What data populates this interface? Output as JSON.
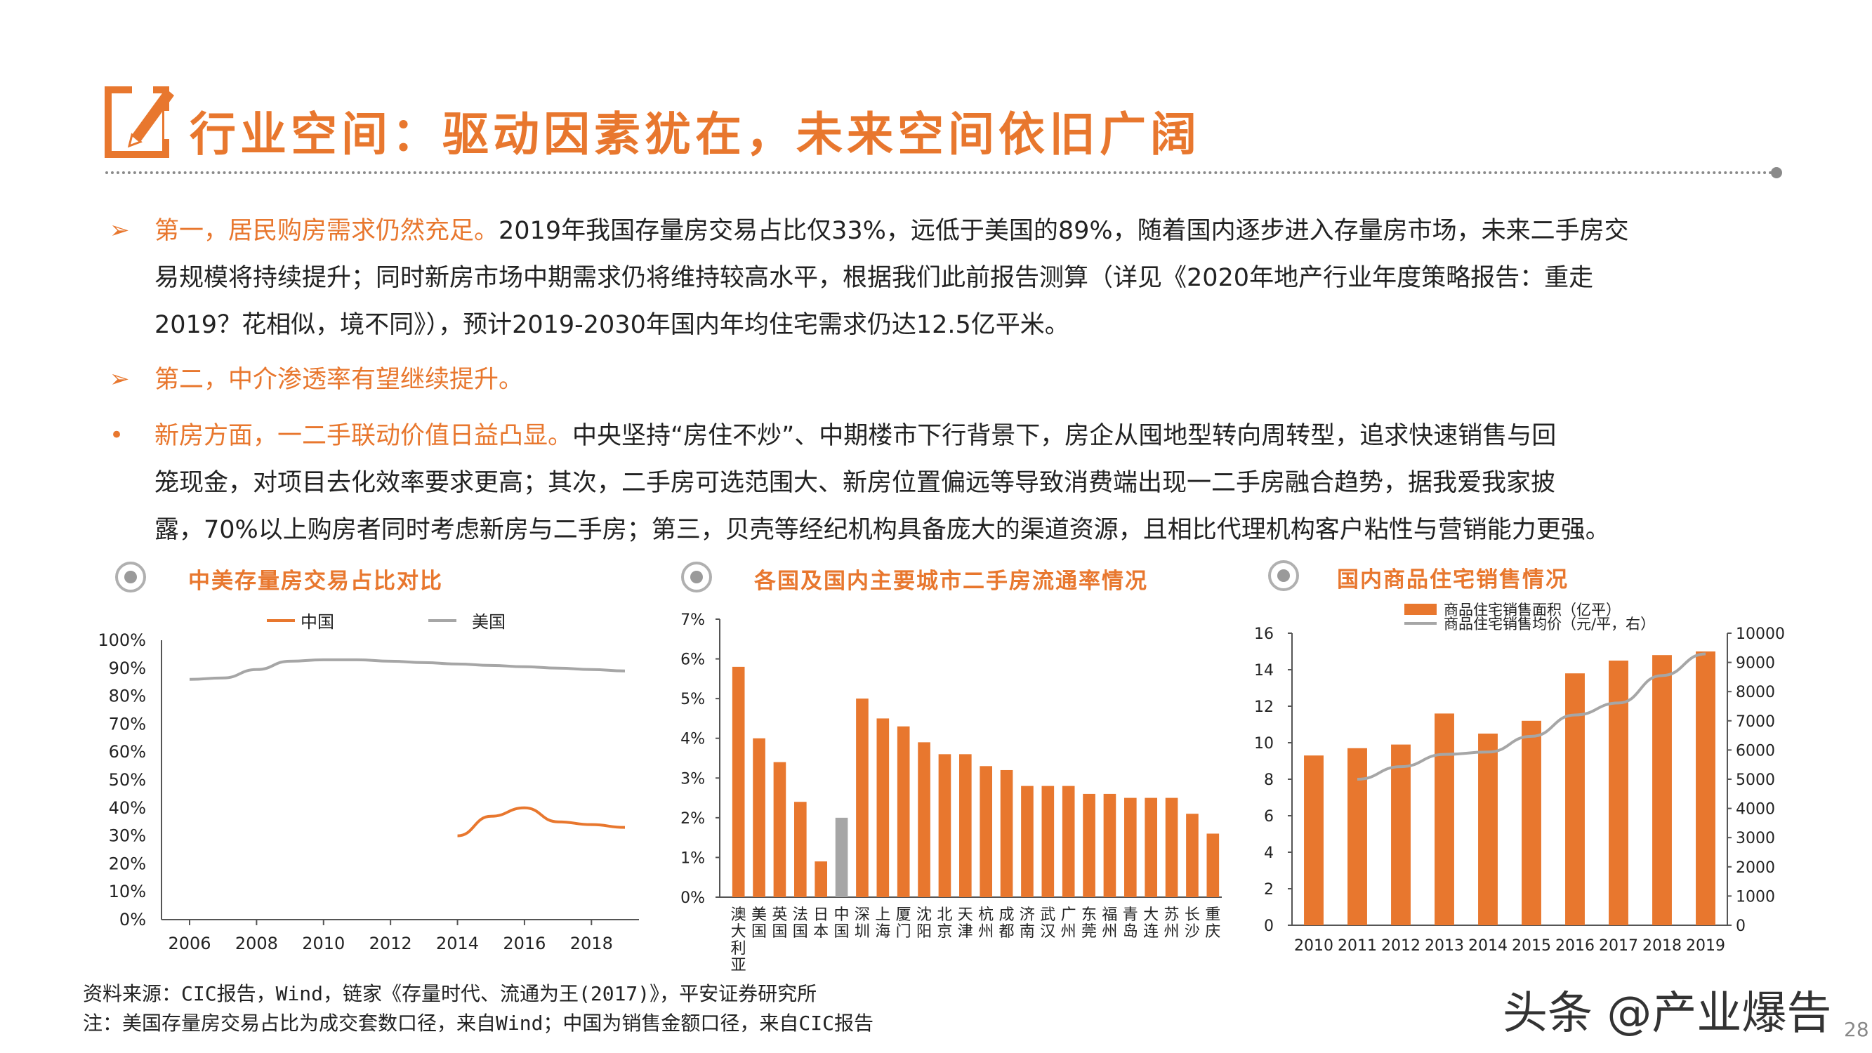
{
  "header": {
    "title": "行业空间：驱动因素犹在，未来空间依旧广阔"
  },
  "paragraphs": {
    "p1_head": "第一，居民购房需求仍然充足。",
    "p1_line1": "2019年我国存量房交易占比仅33%，远低于美国的89%，随着国内逐步进入存量房市场，未来二手房交",
    "p1_line2": "易规模将持续提升；同时新房市场中期需求仍将维持较高水平，根据我们此前报告测算（详见《2020年地产行业年度策略报告：重走",
    "p1_line3": "2019？花相似，境不同》），预计2019-2030年国内年均住宅需求仍达12.5亿平米。",
    "p2_head": "第二，中介渗透率有望继续提升。",
    "p3_head": "新房方面，一二手联动价值日益凸显。",
    "p3_line1": "中央坚持“房住不炒”、中期楼市下行背景下，房企从囤地型转向周转型，追求快速销售与回",
    "p3_line2": "笼现金，对项目去化效率要求更高；其次，二手房可选范围大、新房位置偏远等导致消费端出现一二手房融合趋势，据我爱我家披",
    "p3_line3": "露，70%以上购房者同时考虑新房与二手房；第三，贝壳等经纪机构具备庞大的渠道资源，且相比代理机构客户粘性与营销能力更强。"
  },
  "colors": {
    "accent": "#E8772E",
    "gray_series": "#A6A6A6"
  },
  "chart_data": [
    {
      "type": "line",
      "title": "中美存量房交易占比对比",
      "x": [
        2006,
        2007,
        2008,
        2009,
        2010,
        2011,
        2012,
        2013,
        2014,
        2015,
        2016,
        2017,
        2018,
        2019
      ],
      "series": [
        {
          "name": "中国",
          "color": "#E8772E",
          "values": [
            null,
            null,
            null,
            null,
            null,
            null,
            null,
            null,
            30,
            37,
            40,
            35,
            34,
            33
          ]
        },
        {
          "name": "美国",
          "color": "#A6A6A6",
          "values": [
            86,
            86.5,
            89.5,
            92.5,
            93,
            93,
            92.5,
            92,
            91.5,
            91,
            90.5,
            90,
            89.5,
            89
          ]
        }
      ],
      "x_ticks": [
        "2006",
        "2008",
        "2010",
        "2012",
        "2014",
        "2016",
        "2018"
      ],
      "y_ticks": [
        "100%",
        "90%",
        "80%",
        "70%",
        "60%",
        "50%",
        "40%",
        "30%",
        "20%",
        "10%",
        "0%"
      ],
      "ylim": [
        0,
        100
      ],
      "legend": "top"
    },
    {
      "type": "bar",
      "title": "各国及国内主要城市二手房流通率情况",
      "categories": [
        "澳大利亚",
        "美国",
        "英国",
        "法国",
        "日本",
        "中国",
        "深圳",
        "上海",
        "厦门",
        "沈阳",
        "北京",
        "天津",
        "杭州",
        "成都",
        "济南",
        "武汉",
        "广州",
        "东莞",
        "福州",
        "青岛",
        "大连",
        "苏州",
        "长沙",
        "重庆"
      ],
      "values": [
        5.8,
        4.0,
        3.4,
        2.4,
        0.9,
        2.0,
        5.0,
        4.5,
        4.3,
        3.9,
        3.6,
        3.6,
        3.3,
        3.2,
        2.8,
        2.8,
        2.8,
        2.6,
        2.6,
        2.5,
        2.5,
        2.5,
        2.1,
        1.6
      ],
      "highlight": {
        "中国": "#A6A6A6"
      },
      "y_ticks": [
        "7%",
        "6%",
        "5%",
        "4%",
        "3%",
        "2%",
        "1%",
        "0%"
      ],
      "ylim": [
        0,
        7
      ]
    },
    {
      "type": "bar",
      "title": "国内商品住宅销售情况",
      "categories": [
        "2010",
        "2011",
        "2012",
        "2013",
        "2014",
        "2015",
        "2016",
        "2017",
        "2018",
        "2019"
      ],
      "series": [
        {
          "name": "商品住宅销售面积（亿平）",
          "type": "bar",
          "axis": "left",
          "color": "#E8772E",
          "values": [
            9.3,
            9.7,
            9.9,
            11.6,
            10.5,
            11.2,
            13.8,
            14.5,
            14.8,
            15.0
          ]
        },
        {
          "name": "商品住宅销售均价（元/平，右）",
          "type": "line",
          "axis": "right",
          "color": "#A6A6A6",
          "values": [
            null,
            5000,
            5430,
            5850,
            5930,
            6470,
            7200,
            7610,
            8550,
            9290
          ]
        }
      ],
      "y_ticks_left": [
        "16",
        "14",
        "12",
        "10",
        "8",
        "6",
        "4",
        "2",
        "0"
      ],
      "y_ticks_right": [
        "10000",
        "9000",
        "8000",
        "7000",
        "6000",
        "5000",
        "4000",
        "3000",
        "2000",
        "1000",
        "0"
      ],
      "ylim_left": [
        0,
        16
      ],
      "ylim_right": [
        0,
        10000
      ],
      "legend": "top"
    }
  ],
  "footnotes": {
    "source": "资料来源：CIC报告，Wind，链家《存量时代、流通为王(2017)》，平安证券研究所",
    "note": "注：美国存量房交易占比为成交套数口径，来自Wind；中国为销售金额口径，来自CIC报告"
  },
  "watermark": "头条 @产业爆告",
  "page_number": "28"
}
